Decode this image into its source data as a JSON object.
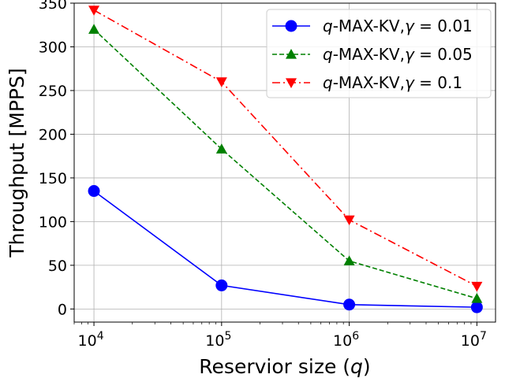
{
  "chart_data": {
    "type": "line",
    "title": "",
    "xlabel": "Reservior size",
    "xlabel_var": "q",
    "ylabel": "Throughput [MPPS]",
    "x_scale": "log",
    "x": [
      10000,
      100000,
      1000000,
      10000000
    ],
    "x_tick_labels": [
      {
        "base": "10",
        "exp": "4"
      },
      {
        "base": "10",
        "exp": "5"
      },
      {
        "base": "10",
        "exp": "6"
      },
      {
        "base": "10",
        "exp": "7"
      }
    ],
    "xlim": [
      7000,
      14000000
    ],
    "ylim": [
      -15,
      350
    ],
    "y_ticks": [
      "0",
      "50",
      "100",
      "150",
      "200",
      "250",
      "300",
      "350"
    ],
    "grid": true,
    "legend_position": "top-right",
    "series": [
      {
        "name_prefix": "q",
        "name_middle": "-MAX-KV,",
        "name_param": "γ",
        "name_value": " = 0.01",
        "color": "#0000ff",
        "linestyle": "solid",
        "marker": "circle",
        "values": [
          135,
          27,
          5,
          2
        ]
      },
      {
        "name_prefix": "q",
        "name_middle": "-MAX-KV,",
        "name_param": "γ",
        "name_value": " = 0.05",
        "color": "#008000",
        "linestyle": "dashed",
        "marker": "triangle-up",
        "values": [
          320,
          183,
          55,
          12
        ]
      },
      {
        "name_prefix": "q",
        "name_middle": "-MAX-KV,",
        "name_param": "γ",
        "name_value": " = 0.1",
        "color": "#ff0000",
        "linestyle": "dashdot",
        "marker": "triangle-down",
        "values": [
          342,
          260,
          102,
          26
        ]
      }
    ]
  }
}
